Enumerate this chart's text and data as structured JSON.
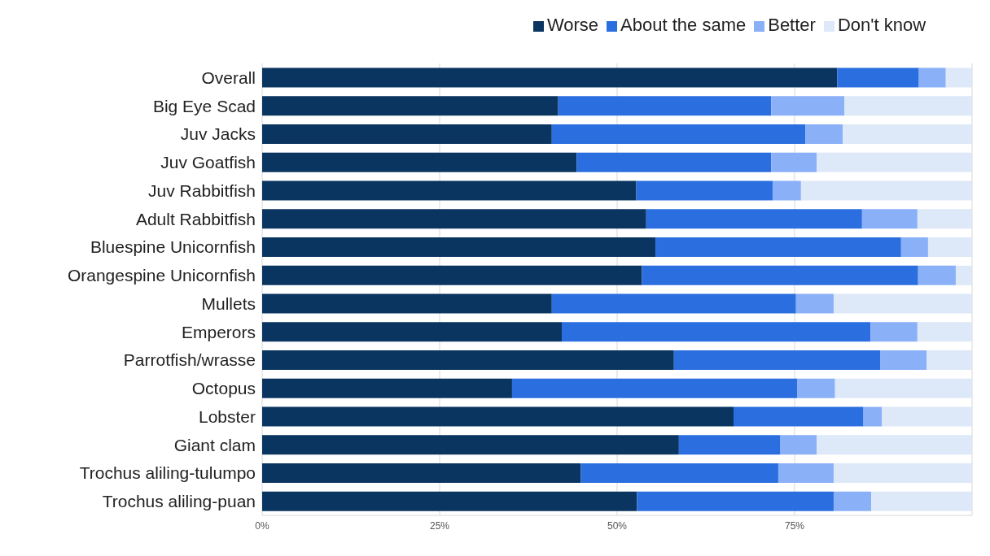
{
  "chart_data": {
    "type": "bar",
    "orientation": "horizontal",
    "stacked": true,
    "grid": "x",
    "legend": "top",
    "categories": [
      "Overall",
      "Big Eye Scad",
      "Juv Jacks",
      "Juv Goatfish",
      "Juv Rabbitfish",
      "Adult Rabbitfish",
      "Bluespine Unicornfish",
      "Orangespine Unicornfish",
      "Mullets",
      "Emperors",
      "Parrotfish/wrasse",
      "Octopus",
      "Lobster",
      "Giant clam",
      "Trochus aliling-tulumpo",
      "Trochus aliling-puan"
    ],
    "series": [
      {
        "name": "Worse",
        "color": "#0a3560",
        "values": [
          81.0,
          41.7,
          40.8,
          44.3,
          52.7,
          54.1,
          55.4,
          53.5,
          40.8,
          42.2,
          58.0,
          35.2,
          66.4,
          58.7,
          44.9,
          52.8
        ]
      },
      {
        "name": "About the same",
        "color": "#2a6ee0",
        "values": [
          11.5,
          30.0,
          35.7,
          27.4,
          19.2,
          30.4,
          34.6,
          38.9,
          34.4,
          43.5,
          29.1,
          40.2,
          18.3,
          14.3,
          27.8,
          27.7
        ]
      },
      {
        "name": "Better",
        "color": "#8ab0f8",
        "values": [
          3.8,
          10.3,
          5.3,
          6.4,
          4.0,
          7.8,
          3.8,
          5.3,
          5.3,
          6.6,
          6.5,
          5.3,
          2.6,
          5.1,
          7.8,
          5.3
        ]
      },
      {
        "name": "Don't know",
        "color": "#dde8f8",
        "values": [
          3.7,
          18.0,
          18.2,
          21.9,
          24.1,
          7.7,
          6.2,
          2.3,
          19.5,
          7.7,
          6.4,
          19.3,
          12.7,
          21.9,
          19.5,
          14.2
        ]
      }
    ],
    "xlim": [
      0,
      100
    ],
    "xticks": [
      {
        "value": 0,
        "label": "0%"
      },
      {
        "value": 25,
        "label": "25%"
      },
      {
        "value": 50,
        "label": "50%"
      },
      {
        "value": 75,
        "label": "75%"
      }
    ]
  }
}
